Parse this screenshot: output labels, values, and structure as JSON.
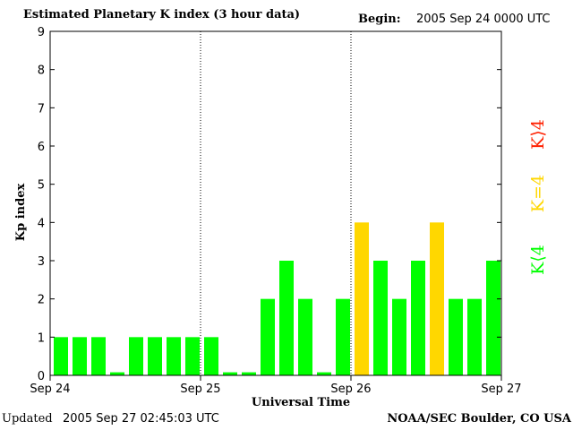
{
  "header": {
    "title": "Estimated Planetary K index (3 hour data)",
    "begin_label": "Begin:",
    "begin_value": "2005 Sep 24 0000 UTC"
  },
  "footer": {
    "updated_label": "Updated",
    "updated_value": "2005 Sep 27 02:45:03 UTC",
    "credit": "NOAA/SEC Boulder, CO USA"
  },
  "legend": {
    "low": "K⟨4",
    "mid": "K=4",
    "high": "K⟩4"
  },
  "colors": {
    "low": "#00ff00",
    "mid": "#ffd700",
    "high": "#ff2000",
    "axis": "#000000"
  },
  "chart_data": {
    "type": "bar",
    "title": "Estimated Planetary K index (3 hour data)",
    "xlabel": "Universal Time",
    "ylabel": "Kp index",
    "ylim": [
      0,
      9
    ],
    "yticks": [
      0,
      1,
      2,
      3,
      4,
      5,
      6,
      7,
      8,
      9
    ],
    "xticks": [
      "Sep 24",
      "Sep 25",
      "Sep 26",
      "Sep 27"
    ],
    "day_separators": [
      "Sep 25",
      "Sep 26"
    ],
    "values": [
      1,
      1,
      1,
      0,
      1,
      1,
      1,
      1,
      1,
      0,
      0,
      2,
      3,
      2,
      0,
      2,
      4,
      3,
      2,
      3,
      4,
      2,
      2,
      3
    ]
  }
}
